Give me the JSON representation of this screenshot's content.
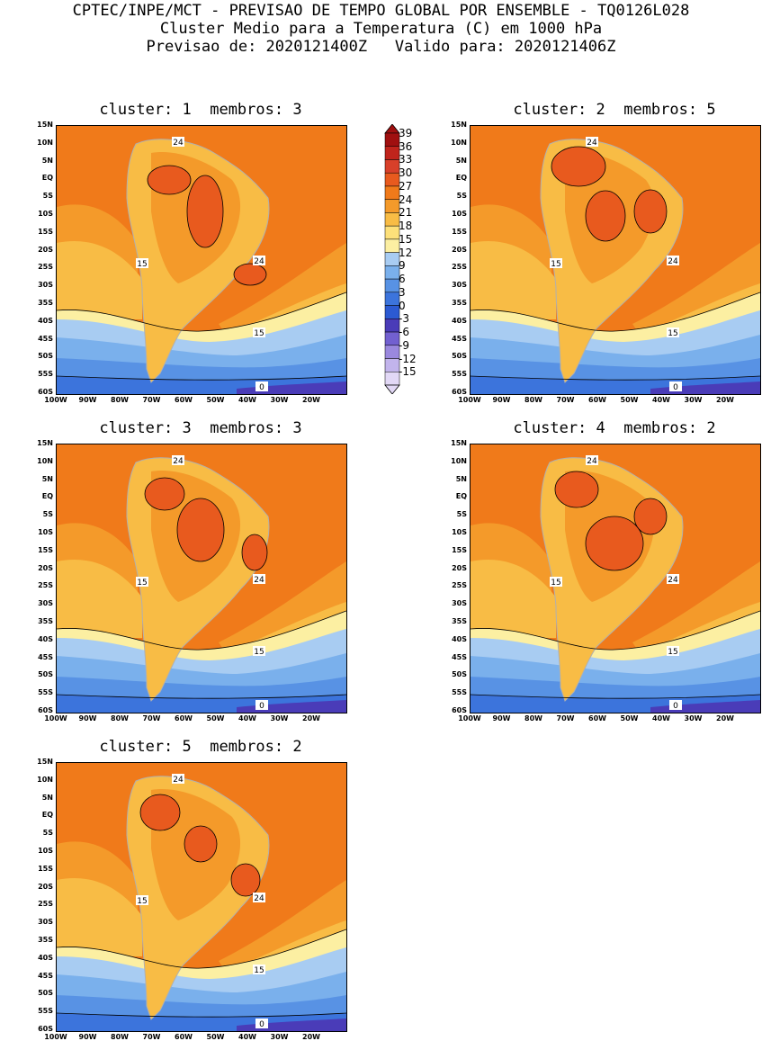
{
  "header": {
    "line1": "CPTEC/INPE/MCT - PREVISAO DE TEMPO GLOBAL POR ENSEMBLE - TQ0126L028",
    "line2": "Cluster Medio para a Temperatura (C) em 1000 hPa",
    "line3": "Previsao de: 2020121400Z   Valido para: 2020121406Z"
  },
  "panels": [
    {
      "title": "cluster: 1  membros: 3"
    },
    {
      "title": "cluster: 2  membros: 5"
    },
    {
      "title": "cluster: 3  membros: 3"
    },
    {
      "title": "cluster: 4  membros: 2"
    },
    {
      "title": "cluster: 5  membros: 2"
    }
  ],
  "axes": {
    "lat_labels": [
      "15N",
      "10N",
      "5N",
      "EQ",
      "5S",
      "10S",
      "15S",
      "20S",
      "25S",
      "30S",
      "35S",
      "40S",
      "45S",
      "50S",
      "55S",
      "60S"
    ],
    "lon_labels": [
      "100W",
      "90W",
      "80W",
      "70W",
      "60W",
      "50W",
      "40W",
      "30W",
      "20W"
    ]
  },
  "contour_labels": {
    "warm": "24",
    "mid": "15",
    "cold": "0"
  },
  "colorbar": {
    "levels": [
      "39",
      "36",
      "33",
      "30",
      "27",
      "24",
      "21",
      "18",
      "15",
      "12",
      "9",
      "6",
      "3",
      "0",
      "-3",
      "-6",
      "-9",
      "-12",
      "-15"
    ],
    "colors": [
      "#a01010",
      "#c0241c",
      "#d8402a",
      "#e85a1e",
      "#f07a1a",
      "#f49a2a",
      "#f8bc45",
      "#fde07a",
      "#fcefa2",
      "#a8ccf2",
      "#7ab0ec",
      "#5892e4",
      "#3c74dc",
      "#2c5ad2",
      "#4a3cb8",
      "#7260d0",
      "#9a88de",
      "#c2b4ec",
      "#e2d8f6"
    ]
  }
}
